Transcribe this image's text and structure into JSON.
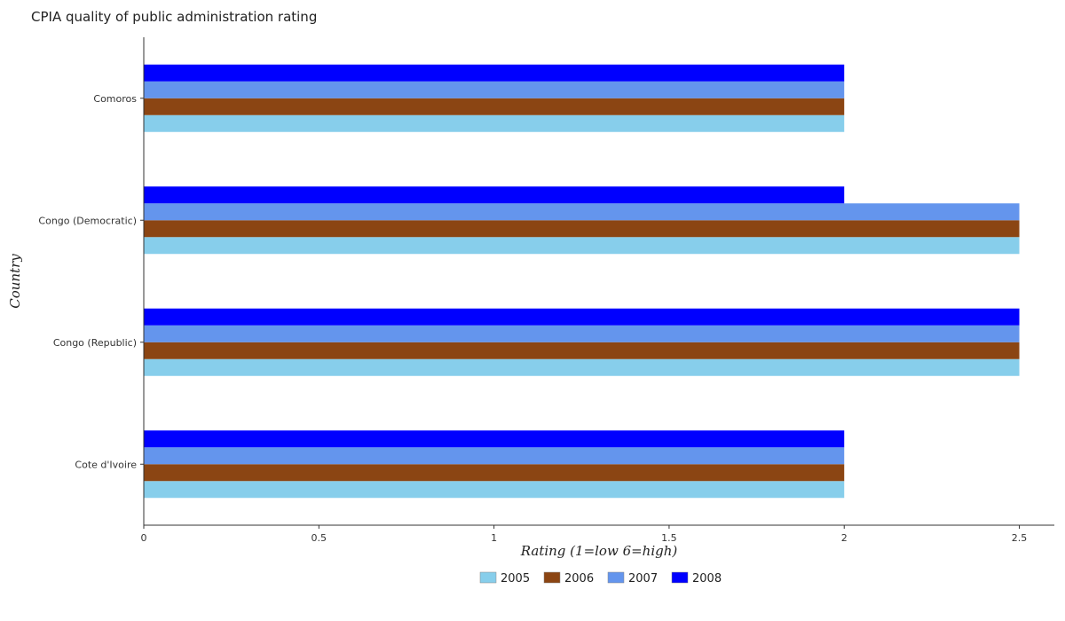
{
  "chart_data": {
    "type": "bar",
    "orientation": "horizontal",
    "title": "CPIA quality of public administration rating",
    "xlabel": "Rating (1=low 6=high)",
    "ylabel": "Country",
    "xlim": [
      0,
      2.6
    ],
    "xticks": [
      "0",
      "0.5",
      "1",
      "1.5",
      "2",
      "2.5"
    ],
    "xtick_values": [
      0,
      0.5,
      1,
      1.5,
      2,
      2.5
    ],
    "grid": false,
    "legend_position": "bottom",
    "categories": [
      "Comoros",
      "Congo (Democratic)",
      "Congo (Republic)",
      "Cote d'Ivoire"
    ],
    "series": [
      {
        "name": "2005",
        "color": "#87ceeb",
        "values": [
          2.0,
          2.5,
          2.5,
          2.0
        ]
      },
      {
        "name": "2006",
        "color": "#8b4513",
        "values": [
          2.0,
          2.5,
          2.5,
          2.0
        ]
      },
      {
        "name": "2007",
        "color": "#6495ed",
        "values": [
          2.0,
          2.5,
          2.5,
          2.0
        ]
      },
      {
        "name": "2008",
        "color": "#0000ff",
        "values": [
          2.0,
          2.0,
          2.5,
          2.0
        ]
      }
    ]
  }
}
